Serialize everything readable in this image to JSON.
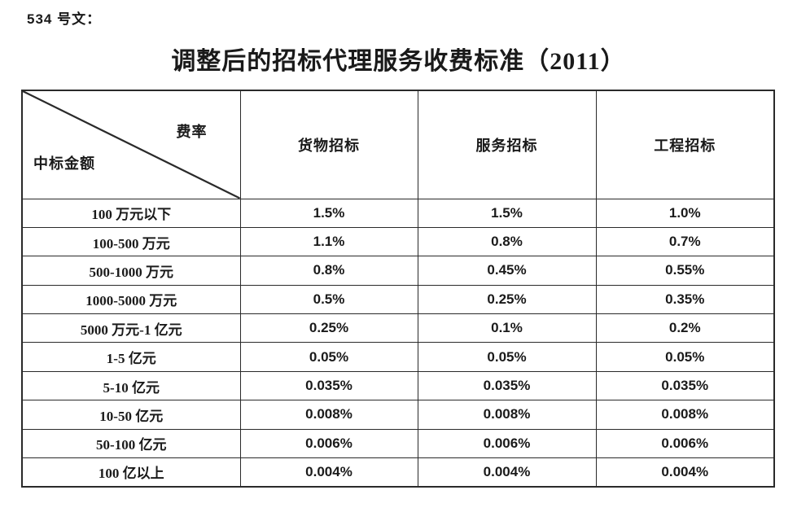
{
  "doc_ref": "534 号文：",
  "title": "调整后的招标代理服务收费标准（2011）",
  "table": {
    "corner": {
      "top_right": "费率",
      "bottom_left": "中标金额"
    },
    "columns": [
      "货物招标",
      "服务招标",
      "工程招标"
    ],
    "rows": [
      {
        "label": "100 万元以下",
        "values": [
          "1.5%",
          "1.5%",
          "1.0%"
        ]
      },
      {
        "label": "100-500 万元",
        "values": [
          "1.1%",
          "0.8%",
          "0.7%"
        ]
      },
      {
        "label": "500-1000 万元",
        "values": [
          "0.8%",
          "0.45%",
          "0.55%"
        ]
      },
      {
        "label": "1000-5000 万元",
        "values": [
          "0.5%",
          "0.25%",
          "0.35%"
        ]
      },
      {
        "label": "5000 万元-1 亿元",
        "values": [
          "0.25%",
          "0.1%",
          "0.2%"
        ]
      },
      {
        "label": "1-5 亿元",
        "values": [
          "0.05%",
          "0.05%",
          "0.05%"
        ]
      },
      {
        "label": "5-10 亿元",
        "values": [
          "0.035%",
          "0.035%",
          "0.035%"
        ]
      },
      {
        "label": "10-50 亿元",
        "values": [
          "0.008%",
          "0.008%",
          "0.008%"
        ]
      },
      {
        "label": "50-100 亿元",
        "values": [
          "0.006%",
          "0.006%",
          "0.006%"
        ]
      },
      {
        "label": "100 亿以上",
        "values": [
          "0.004%",
          "0.004%",
          "0.004%"
        ]
      }
    ]
  },
  "colors": {
    "text": "#1a1a1a",
    "border": "#2a2a2a",
    "background": "#ffffff"
  }
}
